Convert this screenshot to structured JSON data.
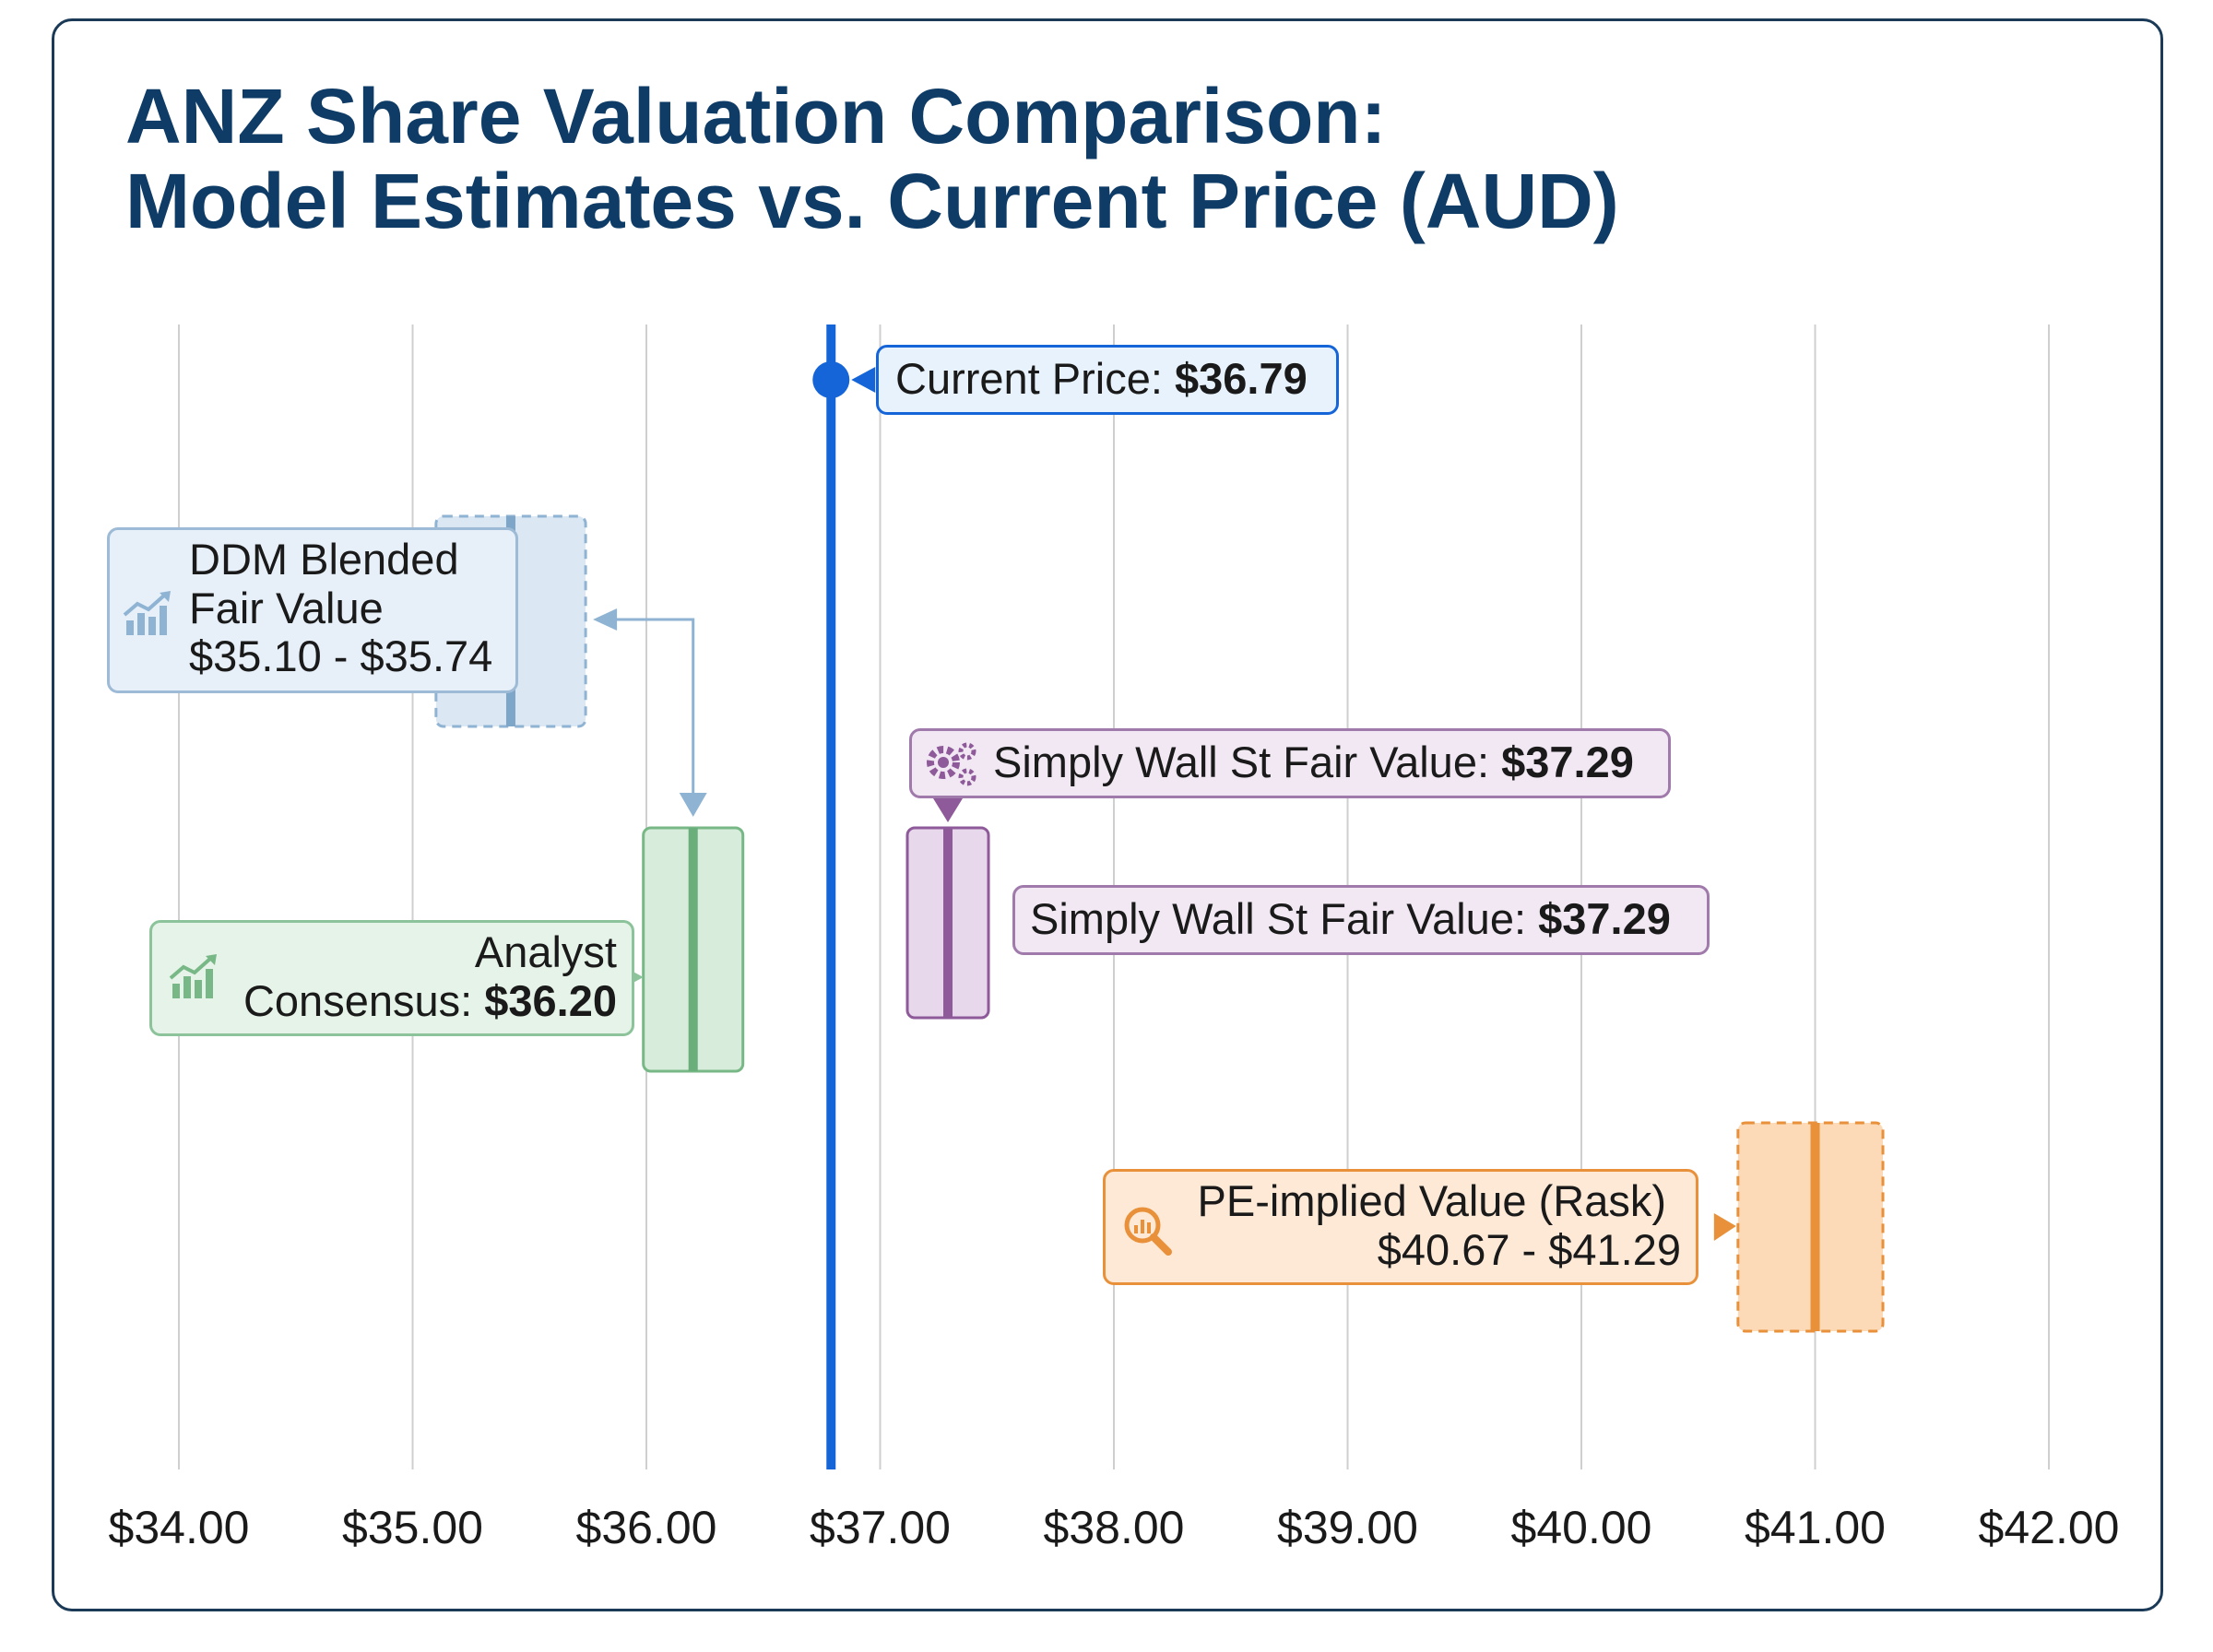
{
  "title": [
    "ANZ Share Valuation Comparison:",
    "Model Estimates vs. Current Price (AUD)"
  ],
  "colors": {
    "frame": "#1b3a57",
    "title": "#0f3c66",
    "current": "#1565d8",
    "ddm": "#8fb3d3",
    "analyst": "#77b886",
    "simply": "#8e5a99",
    "pe": "#e8913a",
    "grid": "#cfcfcf"
  },
  "chart_data": {
    "type": "range",
    "title": "ANZ Share Valuation Comparison: Model Estimates vs. Current Price (AUD)",
    "xlim": [
      34,
      42
    ],
    "x_ticks": [
      34,
      35,
      36,
      37,
      38,
      39,
      40,
      41,
      42
    ],
    "x_tick_labels": [
      "$34.00",
      "$35.00",
      "$36.00",
      "$37.00",
      "$38.00",
      "$39.00",
      "$40.00",
      "$41.00",
      "$42.00"
    ],
    "grid": true,
    "current_price": {
      "value": 36.79,
      "label": "Current Price: ",
      "value_label": "$36.79"
    },
    "estimates": [
      {
        "key": "ddm",
        "low": 35.1,
        "high": 35.74,
        "mid": 35.42,
        "label_lines": [
          "DDM Blended",
          "Fair Value",
          "$35.10 - $35.74"
        ],
        "icon": "growth-chart-icon"
      },
      {
        "key": "analyst",
        "value": 36.2,
        "label_lines": [
          "Analyst",
          "Consensus: "
        ],
        "value_label": "$36.20",
        "icon": "growth-chart-icon"
      },
      {
        "key": "simply",
        "value": 37.29,
        "label": "Simply Wall St Fair Value: ",
        "value_label": "$37.29",
        "label2": "Simply Wall St Fair Value: ",
        "value_label2": "$37.29",
        "icon": "gears-icon"
      },
      {
        "key": "pe",
        "low": 40.67,
        "high": 41.29,
        "mid": 41.0,
        "label_lines": [
          "PE-implied Value (Rask)",
          "$40.67 - $41.29"
        ],
        "icon": "magnifier-chart-icon"
      }
    ]
  }
}
